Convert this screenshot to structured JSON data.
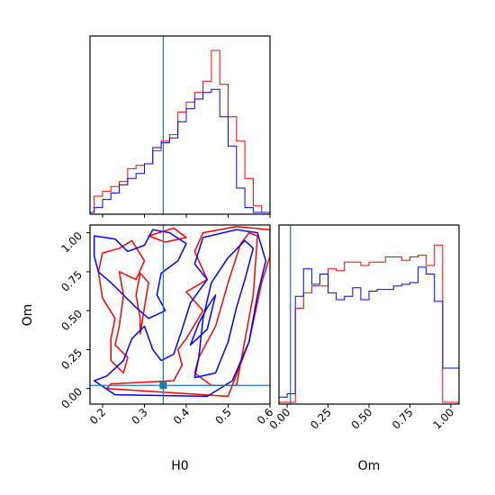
{
  "chart_data": {
    "type": "corner",
    "parameters": [
      "H0",
      "Om"
    ],
    "truths": {
      "H0": 0.345,
      "Om": 0.02
    },
    "colors": {
      "series_a": "#ff0000",
      "series_b": "#0000ff",
      "truth": "#1f77b4"
    },
    "panels": [
      {
        "id": "hist-H0",
        "type": "step-histogram",
        "xlim": [
          0.17,
          0.6
        ],
        "x_ticks": [
          0.2,
          0.3,
          0.4,
          0.5,
          0.6
        ],
        "bin_edges": [
          0.17,
          0.18,
          0.2,
          0.22,
          0.24,
          0.26,
          0.28,
          0.3,
          0.32,
          0.34,
          0.36,
          0.38,
          0.4,
          0.42,
          0.44,
          0.46,
          0.48,
          0.5,
          0.52,
          0.54,
          0.56,
          0.58,
          0.6
        ],
        "series": [
          {
            "color": "#ff0000",
            "values": [
              0,
              0.1,
              0.13,
              0.16,
              0.19,
              0.27,
              0.29,
              0.3,
              0.38,
              0.44,
              0.48,
              0.62,
              0.68,
              0.74,
              0.81,
              1.0,
              0.79,
              0.59,
              0.44,
              0.21,
              0.04,
              0
            ]
          },
          {
            "color": "#0000ff",
            "values": [
              0,
              0.03,
              0.08,
              0.12,
              0.17,
              0.21,
              0.24,
              0.3,
              0.4,
              0.43,
              0.46,
              0.56,
              0.64,
              0.7,
              0.74,
              0.76,
              0.59,
              0.41,
              0.15,
              0.03,
              0,
              0
            ]
          }
        ]
      },
      {
        "id": "contour-H0-Om",
        "type": "contour",
        "xlim": [
          0.17,
          0.6
        ],
        "ylim": [
          -0.1,
          1.05
        ],
        "x_ticks": [
          0.2,
          0.3,
          0.4,
          0.5,
          0.6
        ],
        "y_ticks": [
          0.0,
          0.25,
          0.5,
          0.75,
          1.0
        ],
        "x_tick_labels": [
          "0.2",
          "0.3",
          "0.4",
          "0.5",
          "0.6"
        ],
        "y_tick_labels": [
          "0.00",
          "0.25",
          "0.50",
          "0.75",
          "1.00"
        ],
        "xlabel": "H0",
        "ylabel": "Om",
        "series": [
          {
            "color": "#ff0000",
            "contours": [
              [
                [
                  0.46,
                  0.02
                ],
                [
                  0.52,
                  0.02
                ],
                [
                  0.56,
                  0.6
                ],
                [
                  0.57,
                  0.98
                ],
                [
                  0.55,
                  1.0
                ],
                [
                  0.53,
                  0.93
                ],
                [
                  0.5,
                  0.68
                ],
                [
                  0.47,
                  0.4
                ],
                [
                  0.43,
                  0.2
                ],
                [
                  0.42,
                  0.1
                ]
              ],
              [
                [
                  0.21,
                  0.0
                ],
                [
                  0.5,
                  -0.05
                ],
                [
                  0.55,
                  0.3
                ],
                [
                  0.58,
                  0.68
                ],
                [
                  0.6,
                  0.85
                ],
                [
                  0.6,
                  1.02
                ],
                [
                  0.52,
                  1.04
                ],
                [
                  0.44,
                  1.0
                ],
                [
                  0.42,
                  0.88
                ],
                [
                  0.45,
                  0.7
                ],
                [
                  0.4,
                  0.62
                ],
                [
                  0.44,
                  0.5
                ],
                [
                  0.4,
                  0.32
                ],
                [
                  0.38,
                  0.25
                ],
                [
                  0.39,
                  0.15
                ],
                [
                  0.37,
                  0.05
                ],
                [
                  0.22,
                  0.03
                ]
              ],
              [
                [
                  0.22,
                  0.18
                ],
                [
                  0.25,
                  0.1
                ],
                [
                  0.26,
                  0.2
                ],
                [
                  0.23,
                  0.28
                ],
                [
                  0.24,
                  0.4
                ],
                [
                  0.25,
                  0.6
                ],
                [
                  0.24,
                  0.75
                ],
                [
                  0.28,
                  0.7
                ],
                [
                  0.3,
                  0.82
                ],
                [
                  0.27,
                  0.95
                ],
                [
                  0.24,
                  0.9
                ],
                [
                  0.2,
                  0.87
                ],
                [
                  0.19,
                  0.75
                ],
                [
                  0.2,
                  0.58
                ],
                [
                  0.23,
                  0.45
                ],
                [
                  0.22,
                  0.32
                ]
              ],
              [
                [
                  0.29,
                  0.35
                ],
                [
                  0.3,
                  0.52
                ],
                [
                  0.31,
                  0.68
                ],
                [
                  0.29,
                  0.74
                ],
                [
                  0.28,
                  0.6
                ],
                [
                  0.29,
                  0.45
                ]
              ],
              [
                [
                  0.31,
                  0.98
                ],
                [
                  0.37,
                  1.03
                ],
                [
                  0.4,
                  0.97
                ],
                [
                  0.35,
                  0.94
                ]
              ]
            ]
          },
          {
            "color": "#0000ff",
            "contours": [
              [
                [
                  0.42,
                  0.07
                ],
                [
                  0.47,
                  0.1
                ],
                [
                  0.5,
                  0.3
                ],
                [
                  0.52,
                  0.52
                ],
                [
                  0.54,
                  0.7
                ],
                [
                  0.56,
                  0.9
                ],
                [
                  0.54,
                  0.95
                ],
                [
                  0.5,
                  0.84
                ],
                [
                  0.46,
                  0.68
                ],
                [
                  0.44,
                  0.45
                ],
                [
                  0.43,
                  0.2
                ]
              ],
              [
                [
                  0.18,
                  0.05
                ],
                [
                  0.23,
                  -0.04
                ],
                [
                  0.45,
                  -0.05
                ],
                [
                  0.51,
                  0.05
                ],
                [
                  0.55,
                  0.3
                ],
                [
                  0.57,
                  0.6
                ],
                [
                  0.59,
                  0.82
                ],
                [
                  0.57,
                  1.0
                ],
                [
                  0.52,
                  1.02
                ],
                [
                  0.44,
                  0.97
                ],
                [
                  0.42,
                  0.8
                ],
                [
                  0.45,
                  0.7
                ],
                [
                  0.41,
                  0.55
                ],
                [
                  0.39,
                  0.38
                ],
                [
                  0.37,
                  0.22
                ],
                [
                  0.34,
                  0.18
                ],
                [
                  0.32,
                  0.25
                ],
                [
                  0.3,
                  0.4
                ],
                [
                  0.27,
                  0.32
                ],
                [
                  0.25,
                  0.18
                ],
                [
                  0.21,
                  0.08
                ]
              ],
              [
                [
                  0.18,
                  0.98
                ],
                [
                  0.23,
                  0.96
                ],
                [
                  0.26,
                  0.88
                ],
                [
                  0.3,
                  0.92
                ],
                [
                  0.32,
                  1.02
                ],
                [
                  0.36,
                  1.0
                ],
                [
                  0.4,
                  0.93
                ],
                [
                  0.38,
                  0.82
                ],
                [
                  0.34,
                  0.74
                ],
                [
                  0.33,
                  0.6
                ],
                [
                  0.35,
                  0.5
                ],
                [
                  0.31,
                  0.45
                ],
                [
                  0.28,
                  0.52
                ],
                [
                  0.25,
                  0.6
                ],
                [
                  0.22,
                  0.68
                ],
                [
                  0.19,
                  0.75
                ],
                [
                  0.18,
                  0.85
                ]
              ],
              [
                [
                  0.41,
                  0.28
                ],
                [
                  0.43,
                  0.42
                ],
                [
                  0.45,
                  0.52
                ],
                [
                  0.47,
                  0.6
                ],
                [
                  0.45,
                  0.38
                ]
              ]
            ]
          }
        ]
      },
      {
        "id": "hist-Om",
        "type": "step-histogram",
        "xlim": [
          -0.05,
          1.05
        ],
        "x_ticks": [
          0.0,
          0.25,
          0.5,
          0.75,
          1.0
        ],
        "x_tick_labels": [
          "0.00",
          "0.25",
          "0.50",
          "0.75",
          "1.00"
        ],
        "xlabel": "Om",
        "bin_edges": [
          -0.05,
          0.0,
          0.05,
          0.1,
          0.15,
          0.2,
          0.25,
          0.3,
          0.35,
          0.4,
          0.45,
          0.5,
          0.55,
          0.6,
          0.65,
          0.7,
          0.75,
          0.8,
          0.85,
          0.9,
          0.95,
          1.0,
          1.05
        ],
        "series": [
          {
            "color": "#ff0000",
            "values": [
              0,
              0,
              0.55,
              0.64,
              0.68,
              0.68,
              0.78,
              0.77,
              0.82,
              0.82,
              0.8,
              0.82,
              0.82,
              0.85,
              0.85,
              0.83,
              0.85,
              0.86,
              0.8,
              0.92,
              0,
              0
            ]
          },
          {
            "color": "#0000ff",
            "values": [
              0.03,
              0.05,
              0.62,
              0.78,
              0.69,
              0.75,
              0.64,
              0.6,
              0.62,
              0.67,
              0.6,
              0.65,
              0.66,
              0.66,
              0.68,
              0.69,
              0.7,
              0.79,
              0.75,
              0.59,
              0.2,
              0.2
            ]
          }
        ]
      }
    ]
  }
}
